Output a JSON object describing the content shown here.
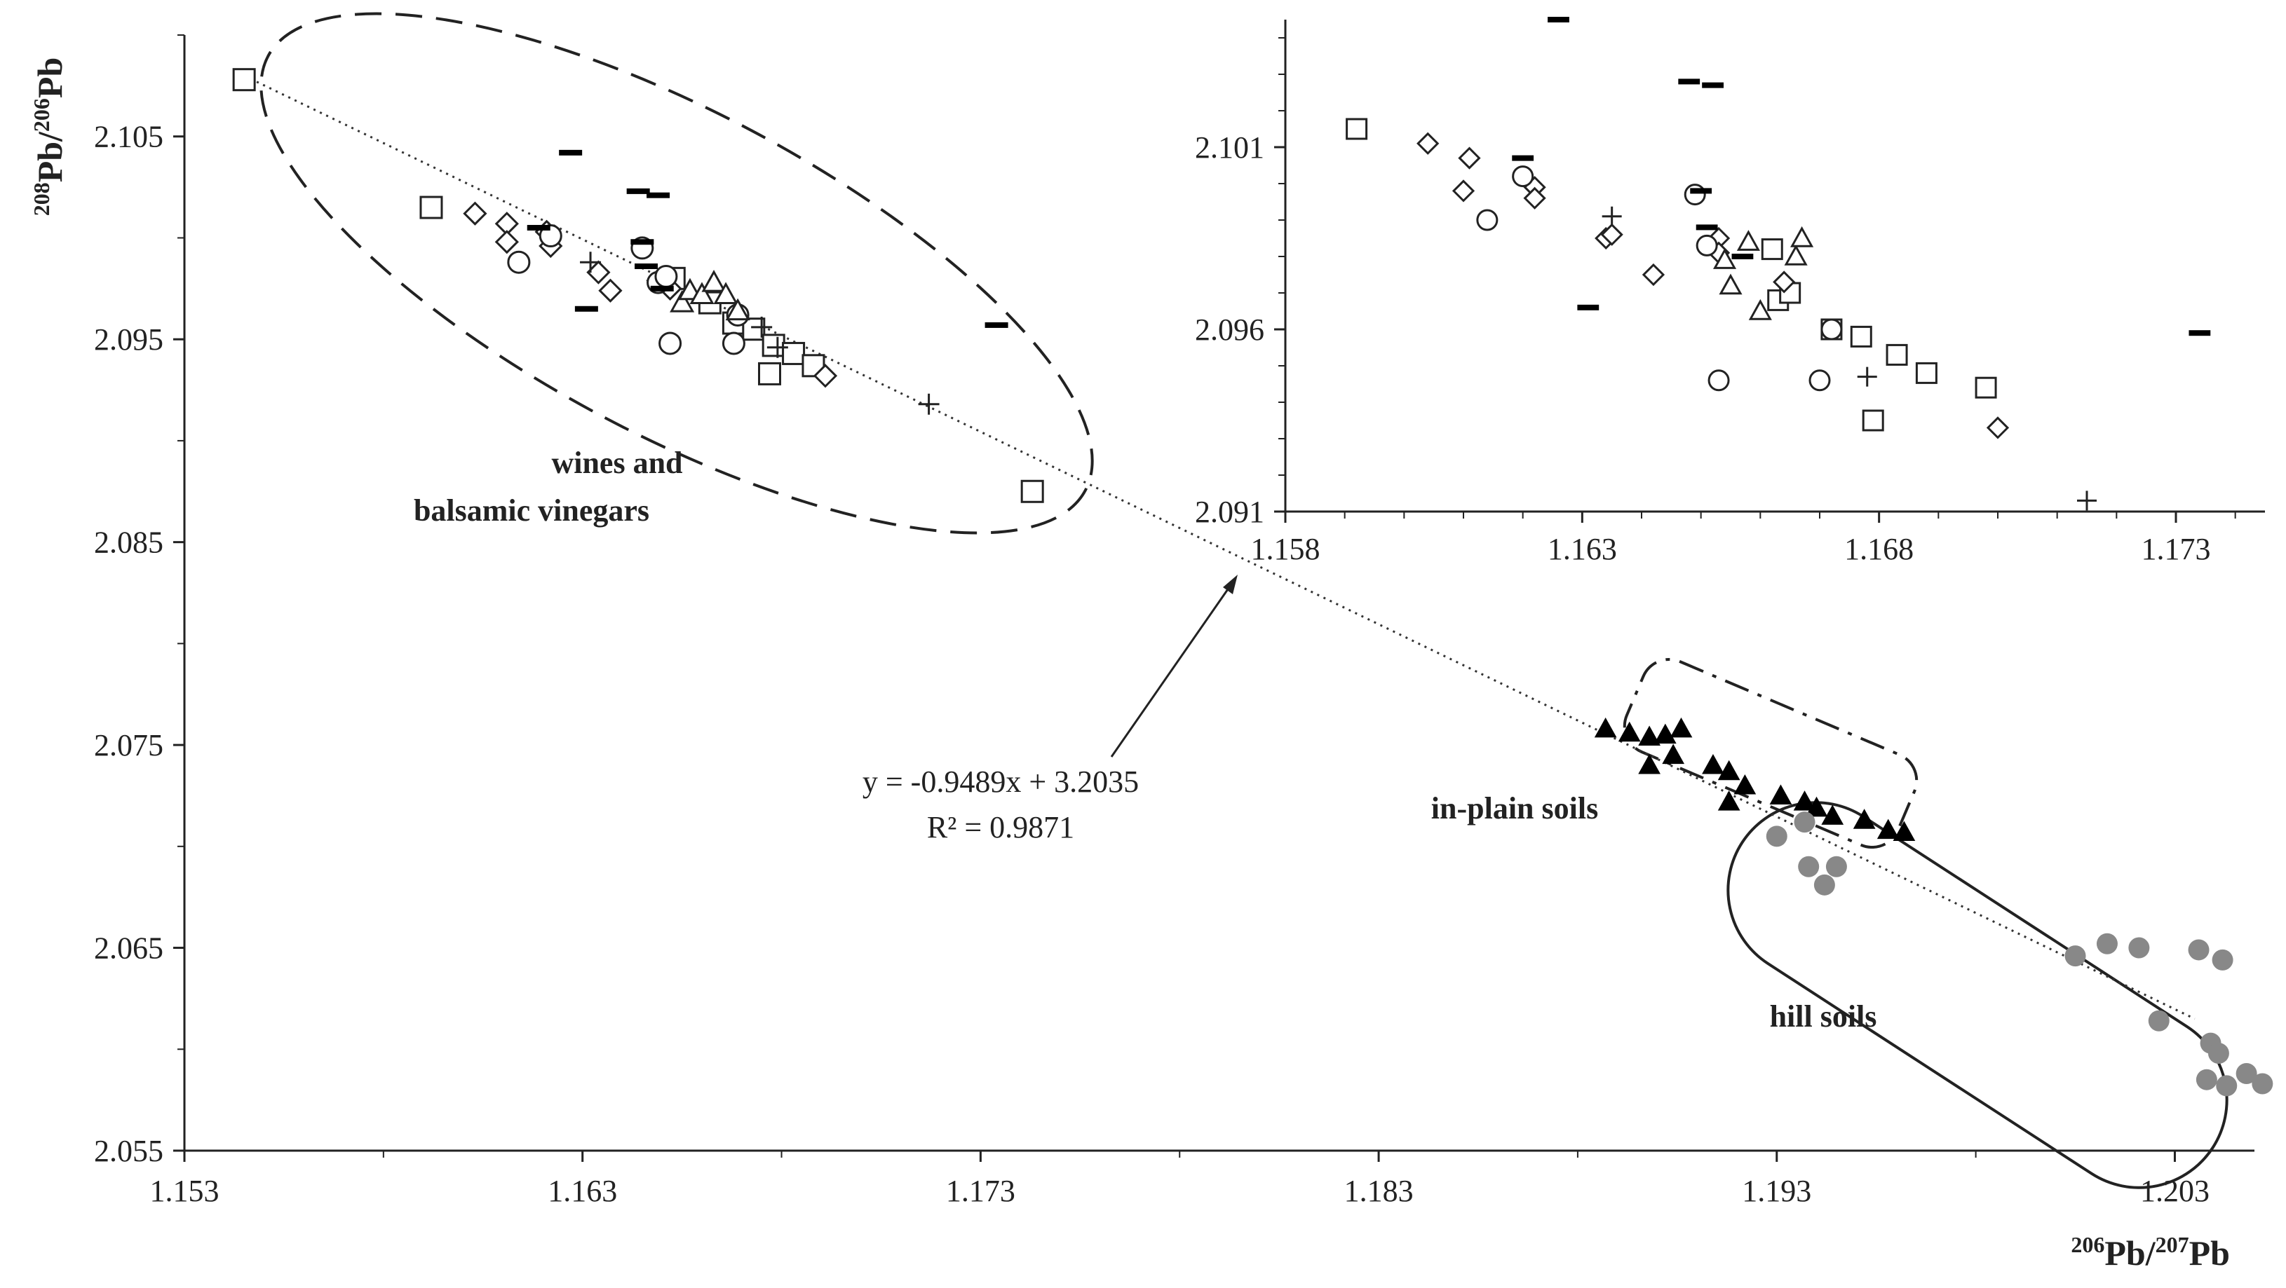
{
  "chart_data": [
    {
      "type": "scatter",
      "name": "main",
      "xlabel": "206Pb/207Pb",
      "xlabel_parts": {
        "sup1": "206",
        "base1": "Pb/",
        "sup2": "207",
        "base2": "Pb"
      },
      "ylabel": "208Pb/206Pb",
      "ylabel_parts": {
        "sup1": "208",
        "base1": "Pb/",
        "sup2": "206",
        "base2": "Pb"
      },
      "xlim": [
        1.153,
        1.205
      ],
      "ylim": [
        2.055,
        2.11
      ],
      "x_tick_labels": [
        "1.153",
        "1.163",
        "1.173",
        "1.183",
        "1.193",
        "1.203"
      ],
      "y_tick_labels": [
        "2.055",
        "2.065",
        "2.075",
        "2.085",
        "2.095",
        "2.105"
      ],
      "trendline": {
        "slope": -0.9489,
        "intercept": 3.2035,
        "x_range": [
          1.1545,
          1.2035
        ],
        "style": "dotted"
      },
      "equation_text": "y = -0.9489x + 3.2035",
      "r2_text": "R² = 0.9871",
      "regions": [
        {
          "label_lines": [
            "wines and",
            "balsamic vinegars"
          ],
          "style": "dashed ellipse"
        },
        {
          "label": "in-plain soils",
          "style": "dash-dot rounded box"
        },
        {
          "label": "hill soils",
          "style": "solid rounded box"
        }
      ],
      "series": [
        {
          "name": "squares",
          "marker": "open-square",
          "points": [
            [
              1.1545,
              2.1078
            ],
            [
              1.1592,
              2.1015
            ],
            [
              1.1653,
              2.098
            ],
            [
              1.1662,
              2.0968
            ],
            [
              1.1668,
              2.0958
            ],
            [
              1.1673,
              2.0955
            ],
            [
              1.1678,
              2.0947
            ],
            [
              1.1683,
              2.0943
            ],
            [
              1.1688,
              2.0937
            ],
            [
              1.1677,
              2.0933
            ],
            [
              1.1743,
              2.0875
            ]
          ]
        },
        {
          "name": "diamonds",
          "marker": "open-diamond",
          "points": [
            [
              1.1603,
              2.1012
            ],
            [
              1.1611,
              2.1007
            ],
            [
              1.1621,
              2.1003
            ],
            [
              1.1611,
              2.0998
            ],
            [
              1.1622,
              2.0996
            ],
            [
              1.1634,
              2.0983
            ],
            [
              1.1637,
              2.0974
            ],
            [
              1.1649,
              2.0979
            ],
            [
              1.1652,
              2.0975
            ],
            [
              1.1691,
              2.0932
            ]
          ]
        },
        {
          "name": "circles",
          "marker": "open-circle",
          "points": [
            [
              1.1622,
              2.1001
            ],
            [
              1.1614,
              2.0988
            ],
            [
              1.1645,
              2.0995
            ],
            [
              1.1649,
              2.0978
            ],
            [
              1.1651,
              2.0981
            ],
            [
              1.1652,
              2.0948
            ],
            [
              1.1668,
              2.0948
            ],
            [
              1.1669,
              2.0962
            ]
          ]
        },
        {
          "name": "triangles",
          "marker": "open-triangle",
          "points": [
            [
              1.1655,
              2.0968
            ],
            [
              1.1657,
              2.0974
            ],
            [
              1.166,
              2.0972
            ],
            [
              1.1663,
              2.0978
            ],
            [
              1.1666,
              2.0972
            ],
            [
              1.1669,
              2.0964
            ]
          ]
        },
        {
          "name": "plus",
          "marker": "plus",
          "points": [
            [
              1.1632,
              2.0988
            ],
            [
              1.1675,
              2.0956
            ],
            [
              1.1679,
              2.0946
            ],
            [
              1.1717,
              2.0918
            ]
          ]
        },
        {
          "name": "dashes",
          "marker": "bar",
          "points": [
            [
              1.1627,
              2.1042
            ],
            [
              1.1644,
              2.1023
            ],
            [
              1.1649,
              2.1021
            ],
            [
              1.1645,
              2.0998
            ],
            [
              1.1646,
              2.0986
            ],
            [
              1.1619,
              2.1005
            ],
            [
              1.1631,
              2.0965
            ],
            [
              1.165,
              2.0975
            ],
            [
              1.1734,
              2.0957
            ]
          ]
        },
        {
          "name": "in-plain soils",
          "marker": "filled-triangle",
          "color": "#000000",
          "points": [
            [
              1.1887,
              2.0758
            ],
            [
              1.1893,
              2.0756
            ],
            [
              1.1898,
              2.0754
            ],
            [
              1.1902,
              2.0755
            ],
            [
              1.1906,
              2.0758
            ],
            [
              1.1898,
              2.074
            ],
            [
              1.1904,
              2.0745
            ],
            [
              1.1914,
              2.074
            ],
            [
              1.1918,
              2.0737
            ],
            [
              1.1922,
              2.073
            ],
            [
              1.1918,
              2.0722
            ],
            [
              1.1931,
              2.0725
            ],
            [
              1.1937,
              2.0722
            ],
            [
              1.194,
              2.0719
            ],
            [
              1.1944,
              2.0715
            ],
            [
              1.1952,
              2.0713
            ],
            [
              1.1958,
              2.0708
            ],
            [
              1.1962,
              2.0707
            ]
          ]
        },
        {
          "name": "hill soils",
          "marker": "filled-circle",
          "color": "#888888",
          "points": [
            [
              1.193,
              2.0705
            ],
            [
              1.1938,
              2.069
            ],
            [
              1.1942,
              2.0681
            ],
            [
              1.1945,
              2.069
            ],
            [
              1.1937,
              2.0712
            ],
            [
              1.2005,
              2.0646
            ],
            [
              1.2013,
              2.0652
            ],
            [
              1.2021,
              2.065
            ],
            [
              1.2026,
              2.0614
            ],
            [
              1.2036,
              2.0649
            ],
            [
              1.2042,
              2.0644
            ],
            [
              1.2039,
              2.0603
            ],
            [
              1.2041,
              2.0598
            ],
            [
              1.2038,
              2.0585
            ],
            [
              1.2043,
              2.0582
            ],
            [
              1.2048,
              2.0588
            ],
            [
              1.2052,
              2.0583
            ]
          ]
        }
      ]
    },
    {
      "type": "scatter",
      "name": "inset",
      "xlim": [
        1.158,
        1.1745
      ],
      "ylim": [
        2.091,
        2.1045
      ],
      "x_tick_labels": [
        "1.158",
        "1.163",
        "1.168",
        "1.173"
      ],
      "y_tick_labels": [
        "2.091",
        "2.096",
        "2.101"
      ],
      "series": [
        {
          "name": "squares",
          "marker": "open-square",
          "points": [
            [
              1.1592,
              2.1015
            ],
            [
              1.1662,
              2.0982
            ],
            [
              1.1663,
              2.0968
            ],
            [
              1.1665,
              2.097
            ],
            [
              1.1672,
              2.096
            ],
            [
              1.1677,
              2.0958
            ],
            [
              1.1683,
              2.0953
            ],
            [
              1.1688,
              2.0948
            ],
            [
              1.1698,
              2.0944
            ],
            [
              1.1679,
              2.0935
            ]
          ]
        },
        {
          "name": "diamonds",
          "marker": "open-diamond",
          "points": [
            [
              1.1604,
              2.1011
            ],
            [
              1.1611,
              2.1007
            ],
            [
              1.161,
              2.0998
            ],
            [
              1.1622,
              2.0999
            ],
            [
              1.1622,
              2.0996
            ],
            [
              1.1634,
              2.0985
            ],
            [
              1.1635,
              2.0986
            ],
            [
              1.1642,
              2.0975
            ],
            [
              1.1653,
              2.0985
            ],
            [
              1.1653,
              2.0981
            ],
            [
              1.1664,
              2.0973
            ],
            [
              1.17,
              2.0933
            ]
          ]
        },
        {
          "name": "circles",
          "marker": "open-circle",
          "points": [
            [
              1.162,
              2.1002
            ],
            [
              1.1614,
              2.099
            ],
            [
              1.1649,
              2.0997
            ],
            [
              1.1651,
              2.0983
            ],
            [
              1.1653,
              2.0946
            ],
            [
              1.167,
              2.0946
            ],
            [
              1.1672,
              2.096
            ]
          ]
        },
        {
          "name": "triangles",
          "marker": "open-triangle",
          "points": [
            [
              1.1654,
              2.0979
            ],
            [
              1.1658,
              2.0984
            ],
            [
              1.1655,
              2.0972
            ],
            [
              1.166,
              2.0965
            ],
            [
              1.1666,
              2.098
            ],
            [
              1.1667,
              2.0985
            ]
          ]
        },
        {
          "name": "plus",
          "marker": "plus",
          "points": [
            [
              1.1635,
              2.0991
            ],
            [
              1.1678,
              2.0947
            ],
            [
              1.1715,
              2.0913
            ]
          ]
        },
        {
          "name": "dashes",
          "marker": "bar",
          "points": [
            [
              1.1626,
              2.1045
            ],
            [
              1.1648,
              2.1028
            ],
            [
              1.1652,
              2.1027
            ],
            [
              1.162,
              2.1007
            ],
            [
              1.165,
              2.0998
            ],
            [
              1.1651,
              2.0988
            ],
            [
              1.1657,
              2.098
            ],
            [
              1.1631,
              2.0966
            ],
            [
              1.1734,
              2.0959
            ]
          ]
        }
      ]
    }
  ]
}
